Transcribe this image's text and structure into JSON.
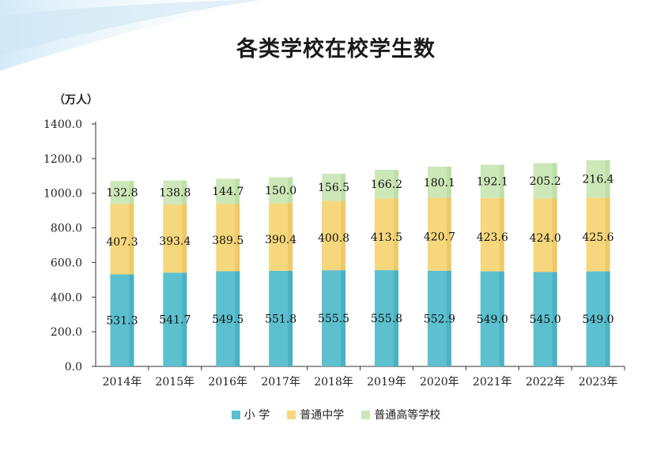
{
  "chart_data": {
    "type": "bar",
    "stacked": true,
    "title": "各类学校在校学生数",
    "unit_label": "（万人）",
    "categories": [
      "2014年",
      "2015年",
      "2016年",
      "2017年",
      "2018年",
      "2019年",
      "2020年",
      "2021年",
      "2022年",
      "2023年"
    ],
    "series": [
      {
        "name": "小 学",
        "color": "#5cc0cf",
        "values": [
          531.3,
          541.7,
          549.5,
          551.8,
          555.5,
          555.8,
          552.9,
          549.0,
          545.0,
          549.0
        ]
      },
      {
        "name": "普通中学",
        "color": "#f6d77d",
        "values": [
          407.3,
          393.4,
          389.5,
          390.4,
          400.8,
          413.5,
          420.7,
          423.6,
          424.0,
          425.6
        ]
      },
      {
        "name": "普通高等学校",
        "color": "#cde8b8",
        "values": [
          132.8,
          138.8,
          144.7,
          150.0,
          156.5,
          166.2,
          180.1,
          192.1,
          205.2,
          216.4
        ]
      }
    ],
    "ylim": [
      0,
      1400
    ],
    "yticks": [
      "0.0",
      "200.0",
      "400.0",
      "600.0",
      "800.0",
      "1000.0",
      "1200.0",
      "1400.0"
    ],
    "grid": false,
    "legend_position": "bottom"
  }
}
